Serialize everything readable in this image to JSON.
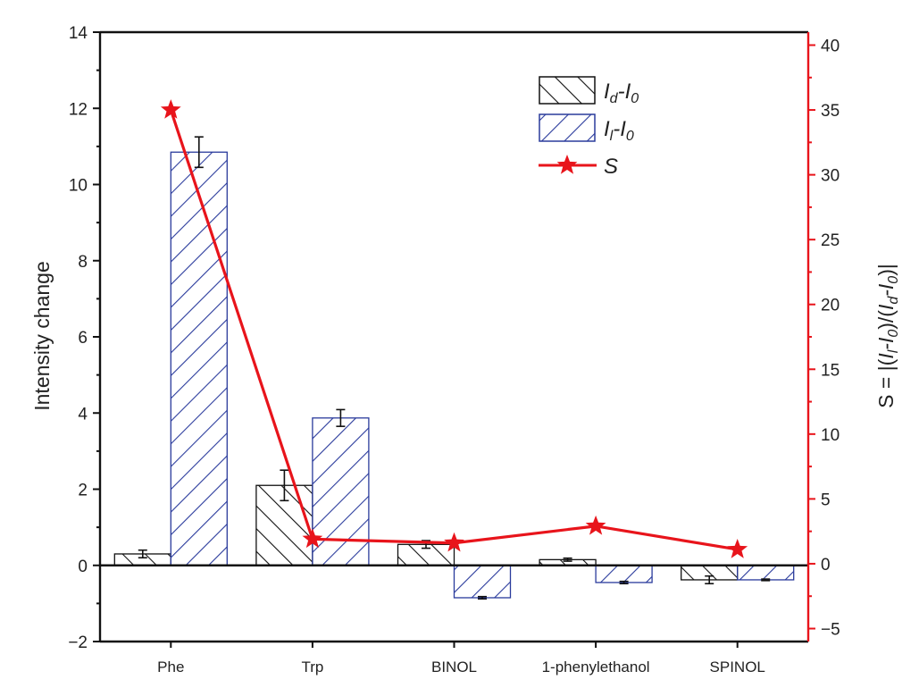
{
  "chart_data": {
    "type": "bar",
    "categories": [
      "Phe",
      "Trp",
      "BINOL",
      "1-phenylethanol",
      "SPINOL"
    ],
    "ylabel": "Intensity change",
    "ylim": [
      -2,
      14
    ],
    "yticks": [
      -2,
      0,
      2,
      4,
      6,
      8,
      10,
      12,
      14
    ],
    "y2label": {
      "prefix": "S = |(",
      "a": "I",
      "a_sub": "l",
      "b": "-I",
      "b_sub": "0",
      "mid": ")/(",
      "c": "I",
      "c_sub": "d",
      "d": "-I",
      "d_sub": "0",
      "suffix": ")|"
    },
    "y2lim": [
      -6,
      41
    ],
    "y2ticks": [
      -5,
      0,
      5,
      10,
      15,
      20,
      25,
      30,
      35,
      40
    ],
    "series": [
      {
        "name": "Id-I0",
        "label_main": "I",
        "label_sub1": "d",
        "label_mid": "-I",
        "label_sub2": "0",
        "kind": "bar",
        "color": "#111111",
        "hatch": "backslash",
        "values": [
          0.3,
          2.1,
          0.55,
          0.15,
          -0.38
        ],
        "errors": [
          0.1,
          0.4,
          0.1,
          0.04,
          0.1
        ]
      },
      {
        "name": "Il-I0",
        "label_main": "I",
        "label_sub1": "l",
        "label_mid": "-I",
        "label_sub2": "0",
        "kind": "bar",
        "color": "#2a3b9c",
        "hatch": "slash",
        "values": [
          10.85,
          3.87,
          -0.85,
          -0.45,
          -0.38
        ],
        "errors": [
          0.4,
          0.22,
          0.03,
          0.03,
          0.02
        ]
      },
      {
        "name": "S",
        "label_main": "S",
        "kind": "line",
        "axis": "right",
        "color": "#e8141b",
        "marker": "star",
        "values": [
          35,
          1.9,
          1.6,
          2.9,
          1.1
        ]
      }
    ],
    "legend_position": "top-right",
    "grid": false
  }
}
